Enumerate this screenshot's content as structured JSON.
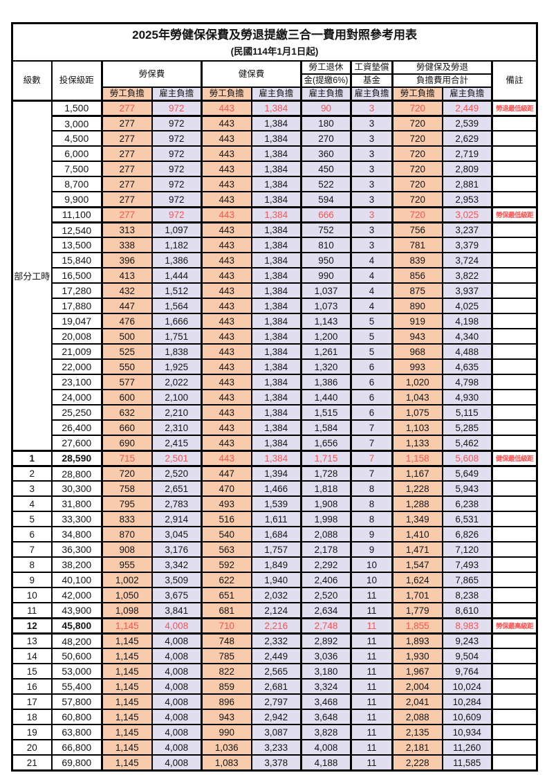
{
  "page": {
    "title": "2025年勞健保保費及勞退提繳三合一費用對照參考用表",
    "subtitle": "(民國114年1月1日起)"
  },
  "colors": {
    "employee_col_bg": "#F8CBAD",
    "employer_col_bg": "#E1DEF0",
    "highlight_text": "#FF5252",
    "border": "#000000",
    "text": "#141414"
  },
  "header": {
    "level": "級數",
    "salary": "投保級距",
    "labor_ins": "勞保費",
    "health_ins": "健保費",
    "pension_l1": "勞工退休",
    "pension_l2": "金(提繳6%)",
    "wage_fund_l1": "工資墊償",
    "wage_fund_l2": "基金",
    "total_l1": "勞健保及勞退",
    "total_l2": "負擔費用合計",
    "remark": "備註",
    "employee": "勞工負擔",
    "employer": "雇主負擔"
  },
  "table": {
    "part_time_label": "部分工時",
    "part_time_rowspan": 23,
    "rows": [
      {
        "l": "",
        "s": "1,500",
        "v": [
          "277",
          "972",
          "443",
          "1,384",
          "90",
          "3",
          "720",
          "2,449"
        ],
        "n": "勞退最低級距",
        "hl": true
      },
      {
        "l": "",
        "s": "3,000",
        "v": [
          "277",
          "972",
          "443",
          "1,384",
          "180",
          "3",
          "720",
          "2,539"
        ],
        "n": ""
      },
      {
        "l": "",
        "s": "4,500",
        "v": [
          "277",
          "972",
          "443",
          "1,384",
          "270",
          "3",
          "720",
          "2,629"
        ],
        "n": ""
      },
      {
        "l": "",
        "s": "6,000",
        "v": [
          "277",
          "972",
          "443",
          "1,384",
          "360",
          "3",
          "720",
          "2,719"
        ],
        "n": ""
      },
      {
        "l": "",
        "s": "7,500",
        "v": [
          "277",
          "972",
          "443",
          "1,384",
          "450",
          "3",
          "720",
          "2,809"
        ],
        "n": ""
      },
      {
        "l": "",
        "s": "8,700",
        "v": [
          "277",
          "972",
          "443",
          "1,384",
          "522",
          "3",
          "720",
          "2,881"
        ],
        "n": ""
      },
      {
        "l": "",
        "s": "9,900",
        "v": [
          "277",
          "972",
          "443",
          "1,384",
          "594",
          "3",
          "720",
          "2,953"
        ],
        "n": ""
      },
      {
        "l": "",
        "s": "11,100",
        "v": [
          "277",
          "972",
          "443",
          "1,384",
          "666",
          "3",
          "720",
          "3,025"
        ],
        "n": "勞保最低級距",
        "hl": true
      },
      {
        "l": "",
        "s": "12,540",
        "v": [
          "313",
          "1,097",
          "443",
          "1,384",
          "752",
          "3",
          "756",
          "3,237"
        ],
        "n": ""
      },
      {
        "l": "",
        "s": "13,500",
        "v": [
          "338",
          "1,182",
          "443",
          "1,384",
          "810",
          "3",
          "781",
          "3,379"
        ],
        "n": ""
      },
      {
        "l": "",
        "s": "15,840",
        "v": [
          "396",
          "1,386",
          "443",
          "1,384",
          "950",
          "4",
          "839",
          "3,724"
        ],
        "n": ""
      },
      {
        "l": "",
        "s": "16,500",
        "v": [
          "413",
          "1,444",
          "443",
          "1,384",
          "990",
          "4",
          "856",
          "3,822"
        ],
        "n": ""
      },
      {
        "l": "",
        "s": "17,280",
        "v": [
          "432",
          "1,512",
          "443",
          "1,384",
          "1,037",
          "4",
          "875",
          "3,937"
        ],
        "n": ""
      },
      {
        "l": "",
        "s": "17,880",
        "v": [
          "447",
          "1,564",
          "443",
          "1,384",
          "1,073",
          "4",
          "890",
          "4,025"
        ],
        "n": ""
      },
      {
        "l": "",
        "s": "19,047",
        "v": [
          "476",
          "1,666",
          "443",
          "1,384",
          "1,143",
          "5",
          "919",
          "4,198"
        ],
        "n": ""
      },
      {
        "l": "",
        "s": "20,008",
        "v": [
          "500",
          "1,751",
          "443",
          "1,384",
          "1,200",
          "5",
          "943",
          "4,340"
        ],
        "n": ""
      },
      {
        "l": "",
        "s": "21,009",
        "v": [
          "525",
          "1,838",
          "443",
          "1,384",
          "1,261",
          "5",
          "968",
          "4,488"
        ],
        "n": ""
      },
      {
        "l": "",
        "s": "22,000",
        "v": [
          "550",
          "1,925",
          "443",
          "1,384",
          "1,320",
          "6",
          "993",
          "4,635"
        ],
        "n": ""
      },
      {
        "l": "",
        "s": "23,100",
        "v": [
          "577",
          "2,022",
          "443",
          "1,384",
          "1,386",
          "6",
          "1,020",
          "4,798"
        ],
        "n": ""
      },
      {
        "l": "",
        "s": "24,000",
        "v": [
          "600",
          "2,100",
          "443",
          "1,384",
          "1,440",
          "6",
          "1,043",
          "4,930"
        ],
        "n": ""
      },
      {
        "l": "",
        "s": "25,250",
        "v": [
          "632",
          "2,210",
          "443",
          "1,384",
          "1,515",
          "6",
          "1,075",
          "5,115"
        ],
        "n": ""
      },
      {
        "l": "",
        "s": "26,400",
        "v": [
          "660",
          "2,310",
          "443",
          "1,384",
          "1,584",
          "7",
          "1,103",
          "5,285"
        ],
        "n": ""
      },
      {
        "l": "",
        "s": "27,600",
        "v": [
          "690",
          "2,415",
          "443",
          "1,384",
          "1,656",
          "7",
          "1,133",
          "5,462"
        ],
        "n": ""
      },
      {
        "l": "1",
        "s": "28,590",
        "v": [
          "715",
          "2,501",
          "443",
          "1,384",
          "1,715",
          "7",
          "1,158",
          "5,608"
        ],
        "n": "健保最低級距",
        "hl": true,
        "em": true
      },
      {
        "l": "2",
        "s": "28,800",
        "v": [
          "720",
          "2,520",
          "447",
          "1,394",
          "1,728",
          "7",
          "1,167",
          "5,649"
        ],
        "n": ""
      },
      {
        "l": "3",
        "s": "30,300",
        "v": [
          "758",
          "2,651",
          "470",
          "1,466",
          "1,818",
          "8",
          "1,228",
          "5,943"
        ],
        "n": ""
      },
      {
        "l": "4",
        "s": "31,800",
        "v": [
          "795",
          "2,783",
          "493",
          "1,539",
          "1,908",
          "8",
          "1,288",
          "6,238"
        ],
        "n": ""
      },
      {
        "l": "5",
        "s": "33,300",
        "v": [
          "833",
          "2,914",
          "516",
          "1,611",
          "1,998",
          "8",
          "1,349",
          "6,531"
        ],
        "n": ""
      },
      {
        "l": "6",
        "s": "34,800",
        "v": [
          "870",
          "3,045",
          "540",
          "1,684",
          "2,088",
          "9",
          "1,410",
          "6,826"
        ],
        "n": ""
      },
      {
        "l": "7",
        "s": "36,300",
        "v": [
          "908",
          "3,176",
          "563",
          "1,757",
          "2,178",
          "9",
          "1,471",
          "7,120"
        ],
        "n": ""
      },
      {
        "l": "8",
        "s": "38,200",
        "v": [
          "955",
          "3,342",
          "592",
          "1,849",
          "2,292",
          "10",
          "1,547",
          "7,493"
        ],
        "n": ""
      },
      {
        "l": "9",
        "s": "40,100",
        "v": [
          "1,002",
          "3,509",
          "622",
          "1,940",
          "2,406",
          "10",
          "1,624",
          "7,865"
        ],
        "n": ""
      },
      {
        "l": "10",
        "s": "42,000",
        "v": [
          "1,050",
          "3,675",
          "651",
          "2,032",
          "2,520",
          "11",
          "1,701",
          "8,238"
        ],
        "n": ""
      },
      {
        "l": "11",
        "s": "43,900",
        "v": [
          "1,098",
          "3,841",
          "681",
          "2,124",
          "2,634",
          "11",
          "1,779",
          "8,610"
        ],
        "n": ""
      },
      {
        "l": "12",
        "s": "45,800",
        "v": [
          "1,145",
          "4,008",
          "710",
          "2,216",
          "2,748",
          "11",
          "1,855",
          "8,983"
        ],
        "n": "勞保最高級距",
        "hl": true,
        "em": true
      },
      {
        "l": "13",
        "s": "48,200",
        "v": [
          "1,145",
          "4,008",
          "748",
          "2,332",
          "2,892",
          "11",
          "1,893",
          "9,243"
        ],
        "n": ""
      },
      {
        "l": "14",
        "s": "50,600",
        "v": [
          "1,145",
          "4,008",
          "785",
          "2,449",
          "3,036",
          "11",
          "1,930",
          "9,504"
        ],
        "n": ""
      },
      {
        "l": "15",
        "s": "53,000",
        "v": [
          "1,145",
          "4,008",
          "822",
          "2,565",
          "3,180",
          "11",
          "1,967",
          "9,764"
        ],
        "n": ""
      },
      {
        "l": "16",
        "s": "55,400",
        "v": [
          "1,145",
          "4,008",
          "859",
          "2,681",
          "3,324",
          "11",
          "2,004",
          "10,024"
        ],
        "n": ""
      },
      {
        "l": "17",
        "s": "57,800",
        "v": [
          "1,145",
          "4,008",
          "896",
          "2,797",
          "3,468",
          "11",
          "2,041",
          "10,284"
        ],
        "n": ""
      },
      {
        "l": "18",
        "s": "60,800",
        "v": [
          "1,145",
          "4,008",
          "943",
          "2,942",
          "3,648",
          "11",
          "2,088",
          "10,609"
        ],
        "n": ""
      },
      {
        "l": "19",
        "s": "63,800",
        "v": [
          "1,145",
          "4,008",
          "990",
          "3,087",
          "3,828",
          "11",
          "2,135",
          "10,934"
        ],
        "n": ""
      },
      {
        "l": "20",
        "s": "66,800",
        "v": [
          "1,145",
          "4,008",
          "1,036",
          "3,233",
          "4,008",
          "11",
          "2,181",
          "11,260"
        ],
        "n": ""
      },
      {
        "l": "21",
        "s": "69,800",
        "v": [
          "1,145",
          "4,008",
          "1,083",
          "3,378",
          "4,188",
          "11",
          "2,228",
          "11,585"
        ],
        "n": ""
      }
    ]
  }
}
